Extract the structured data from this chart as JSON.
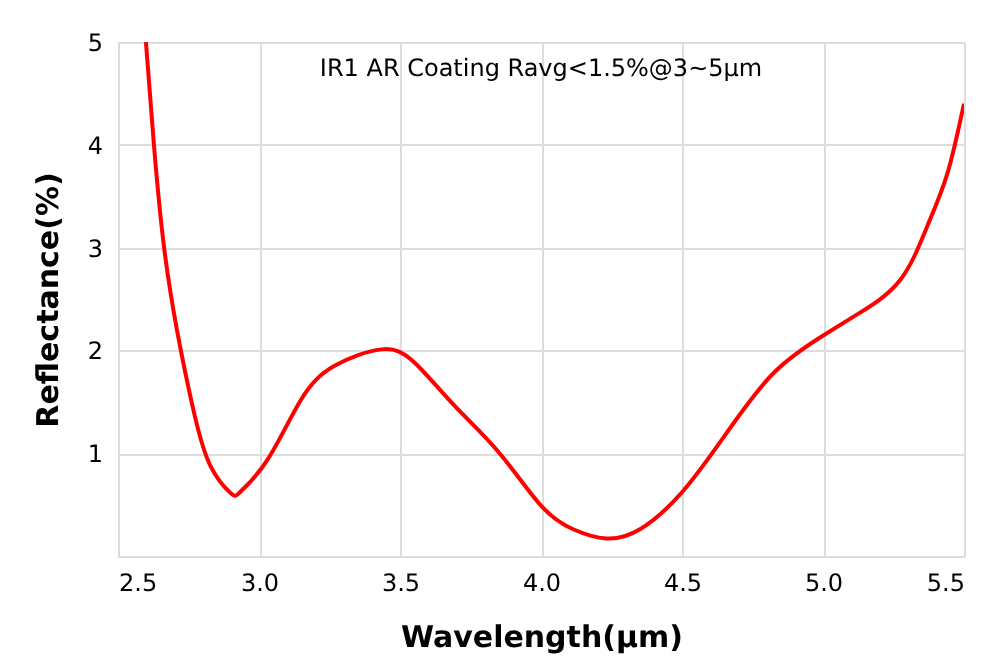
{
  "chart_data": {
    "type": "line",
    "xlabel": "Wavelength(μm)",
    "ylabel": "Reflectance(%)",
    "annotations": [
      "IR1 AR Coating Ravg<1.5%@3~5μm"
    ],
    "xlim": [
      2.5,
      5.5
    ],
    "xticks": [
      {
        "value": 2.5,
        "label": "2.5"
      },
      {
        "value": 3,
        "label": "3.0"
      },
      {
        "value": 3.5,
        "label": "3.5"
      },
      {
        "value": 4,
        "label": "4.0"
      },
      {
        "value": 4.5,
        "label": "4.5"
      },
      {
        "value": 5,
        "label": "5.0"
      },
      {
        "value": 5.5,
        "label": "5.5"
      }
    ],
    "ylim": [
      0,
      5
    ],
    "yticks": [
      1,
      2,
      3,
      4,
      5
    ],
    "grid": true,
    "marker": "none",
    "line_style": "solid",
    "series": [
      {
        "color": "#ff0000",
        "x": [
          2.599,
          2.628,
          2.663,
          2.711,
          2.77,
          2.829,
          2.9,
          2.936,
          3.031,
          3.149,
          3.268,
          3.434,
          3.552,
          3.694,
          3.853,
          4.0,
          4.114,
          4.232,
          4.351,
          4.5,
          4.659,
          4.825,
          4.998,
          5.133,
          5.275,
          5.37,
          5.441,
          5.5
        ],
        "values": [
          5.0,
          3.98,
          3.01,
          2.17,
          1.39,
          0.87,
          0.61,
          0.63,
          0.94,
          1.52,
          1.85,
          2.01,
          1.88,
          1.46,
          1.0,
          0.49,
          0.26,
          0.17,
          0.26,
          0.62,
          1.2,
          1.78,
          2.14,
          2.37,
          2.69,
          3.21,
          3.72,
          4.4
        ]
      }
    ]
  }
}
